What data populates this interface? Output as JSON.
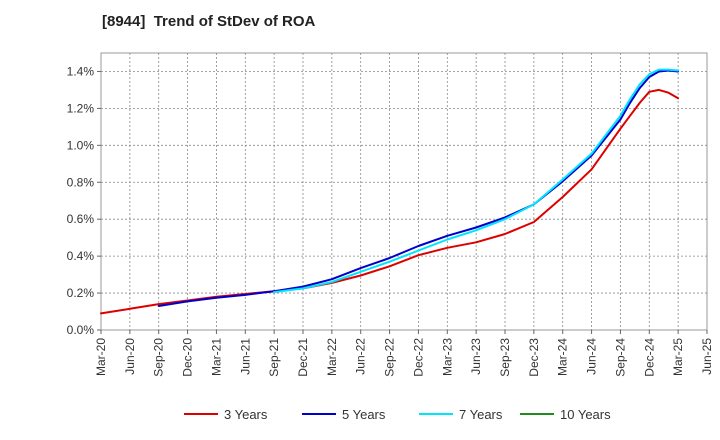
{
  "chart_data": {
    "type": "line",
    "title": "[8944]  Trend of StDev of ROA",
    "xlabel": "",
    "ylabel": "",
    "x_tick_labels": [
      "Mar-20",
      "Jun-20",
      "Sep-20",
      "Dec-20",
      "Mar-21",
      "Jun-21",
      "Sep-21",
      "Dec-21",
      "Mar-22",
      "Jun-22",
      "Sep-22",
      "Dec-22",
      "Mar-23",
      "Jun-23",
      "Sep-23",
      "Dec-23",
      "Mar-24",
      "Jun-24",
      "Sep-24",
      "Dec-24",
      "Mar-25",
      "Jun-25"
    ],
    "y_tick_labels": [
      "0.0%",
      "0.2%",
      "0.4%",
      "0.6%",
      "0.8%",
      "1.0%",
      "1.2%",
      "1.4%"
    ],
    "ylim": [
      0,
      1.5
    ],
    "y_unit": "%",
    "grid": true,
    "legend_position": "bottom",
    "x": [
      "Mar-20",
      "Jun-20",
      "Sep-20",
      "Dec-20",
      "Mar-21",
      "Jun-21",
      "Sep-21",
      "Dec-21",
      "Mar-22",
      "Jun-22",
      "Sep-22",
      "Dec-22",
      "Mar-23",
      "Jun-23",
      "Sep-23",
      "Dec-23",
      "Mar-24",
      "Jun-24",
      "Sep-24",
      "Oct-24",
      "Nov-24",
      "Dec-24",
      "Jan-25",
      "Feb-25",
      "Mar-25"
    ],
    "series": [
      {
        "name": "3 Years",
        "color": "#dd0000",
        "values": [
          0.09,
          0.115,
          0.14,
          0.16,
          0.18,
          0.195,
          0.21,
          0.225,
          0.255,
          0.295,
          0.345,
          0.405,
          0.445,
          0.475,
          0.52,
          0.585,
          0.72,
          0.87,
          1.09,
          1.16,
          1.23,
          1.29,
          1.3,
          1.285,
          1.255
        ]
      },
      {
        "name": "5 Years",
        "color": "#0000cc",
        "values": [
          null,
          null,
          0.13,
          0.155,
          0.175,
          0.19,
          0.21,
          0.235,
          0.275,
          0.335,
          0.39,
          0.455,
          0.51,
          0.555,
          0.61,
          0.68,
          0.805,
          0.945,
          1.14,
          1.23,
          1.31,
          1.37,
          1.4,
          1.405,
          1.4
        ]
      },
      {
        "name": "7 Years",
        "color": "#00e5ff",
        "values": [
          null,
          null,
          null,
          null,
          null,
          null,
          0.205,
          0.225,
          0.26,
          0.315,
          0.37,
          0.43,
          0.49,
          0.54,
          0.6,
          0.68,
          0.815,
          0.955,
          1.16,
          1.25,
          1.33,
          1.385,
          1.41,
          1.41,
          1.405
        ]
      },
      {
        "name": "10 Years",
        "color": "#228b22",
        "values": [
          null,
          null,
          null,
          null,
          null,
          null,
          null,
          null,
          null,
          null,
          null,
          null,
          null,
          null,
          null,
          null,
          null,
          null,
          null,
          null,
          null,
          null,
          null,
          null,
          null
        ]
      }
    ]
  }
}
